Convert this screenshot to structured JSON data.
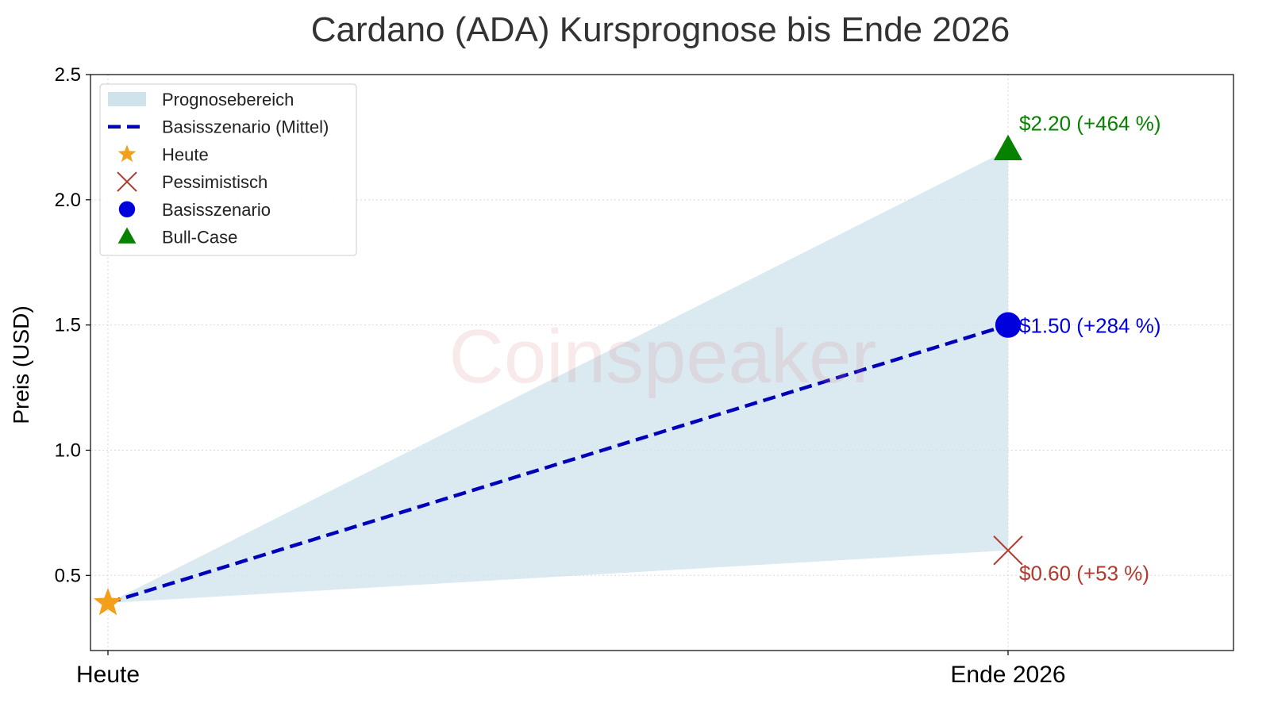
{
  "page": {
    "watermark": "Coinspeaker"
  },
  "chart_data": {
    "type": "line",
    "title": "Cardano (ADA) Kursprognose bis Ende 2026",
    "xlabel": "",
    "ylabel": "Preis (USD)",
    "categories": [
      "Heute",
      "Ende 2026"
    ],
    "ylim": [
      0.2,
      2.5
    ],
    "y_ticks": [
      "0.5",
      "1.0",
      "1.5",
      "2.0",
      "2.5"
    ],
    "grid": true,
    "legend_position": "top-left",
    "legend": [
      {
        "label": "Prognosebereich",
        "symbol": "band",
        "color": "#cfe3ec"
      },
      {
        "label": "Basisszenario (Mittel)",
        "symbol": "dashed-line",
        "color": "#0000bb"
      },
      {
        "label": "Heute",
        "symbol": "star",
        "color": "#f2a01a"
      },
      {
        "label": "Pessimistisch",
        "symbol": "x",
        "color": "#b13a2f"
      },
      {
        "label": "Basisszenario",
        "symbol": "circle",
        "color": "#0000dd"
      },
      {
        "label": "Bull-Case",
        "symbol": "triangle",
        "color": "#068200"
      }
    ],
    "band": {
      "lower": [
        0.39,
        0.6
      ],
      "upper": [
        0.39,
        2.2
      ],
      "color": "#cfe3ec"
    },
    "base_line": {
      "values": [
        0.39,
        1.5
      ],
      "color": "#0000bb"
    },
    "points": [
      {
        "category": "Heute",
        "value": 0.39,
        "marker": "star",
        "color": "#f2a01a",
        "label": ""
      },
      {
        "category": "Ende 2026",
        "value": 0.6,
        "marker": "x",
        "color": "#b13a2f",
        "label": "$0.60 (+53 %)"
      },
      {
        "category": "Ende 2026",
        "value": 1.5,
        "marker": "circle",
        "color": "#0000dd",
        "label": "$1.50 (+284 %)"
      },
      {
        "category": "Ende 2026",
        "value": 2.2,
        "marker": "triangle",
        "color": "#068200",
        "label": "$2.20 (+464 %)"
      }
    ]
  }
}
